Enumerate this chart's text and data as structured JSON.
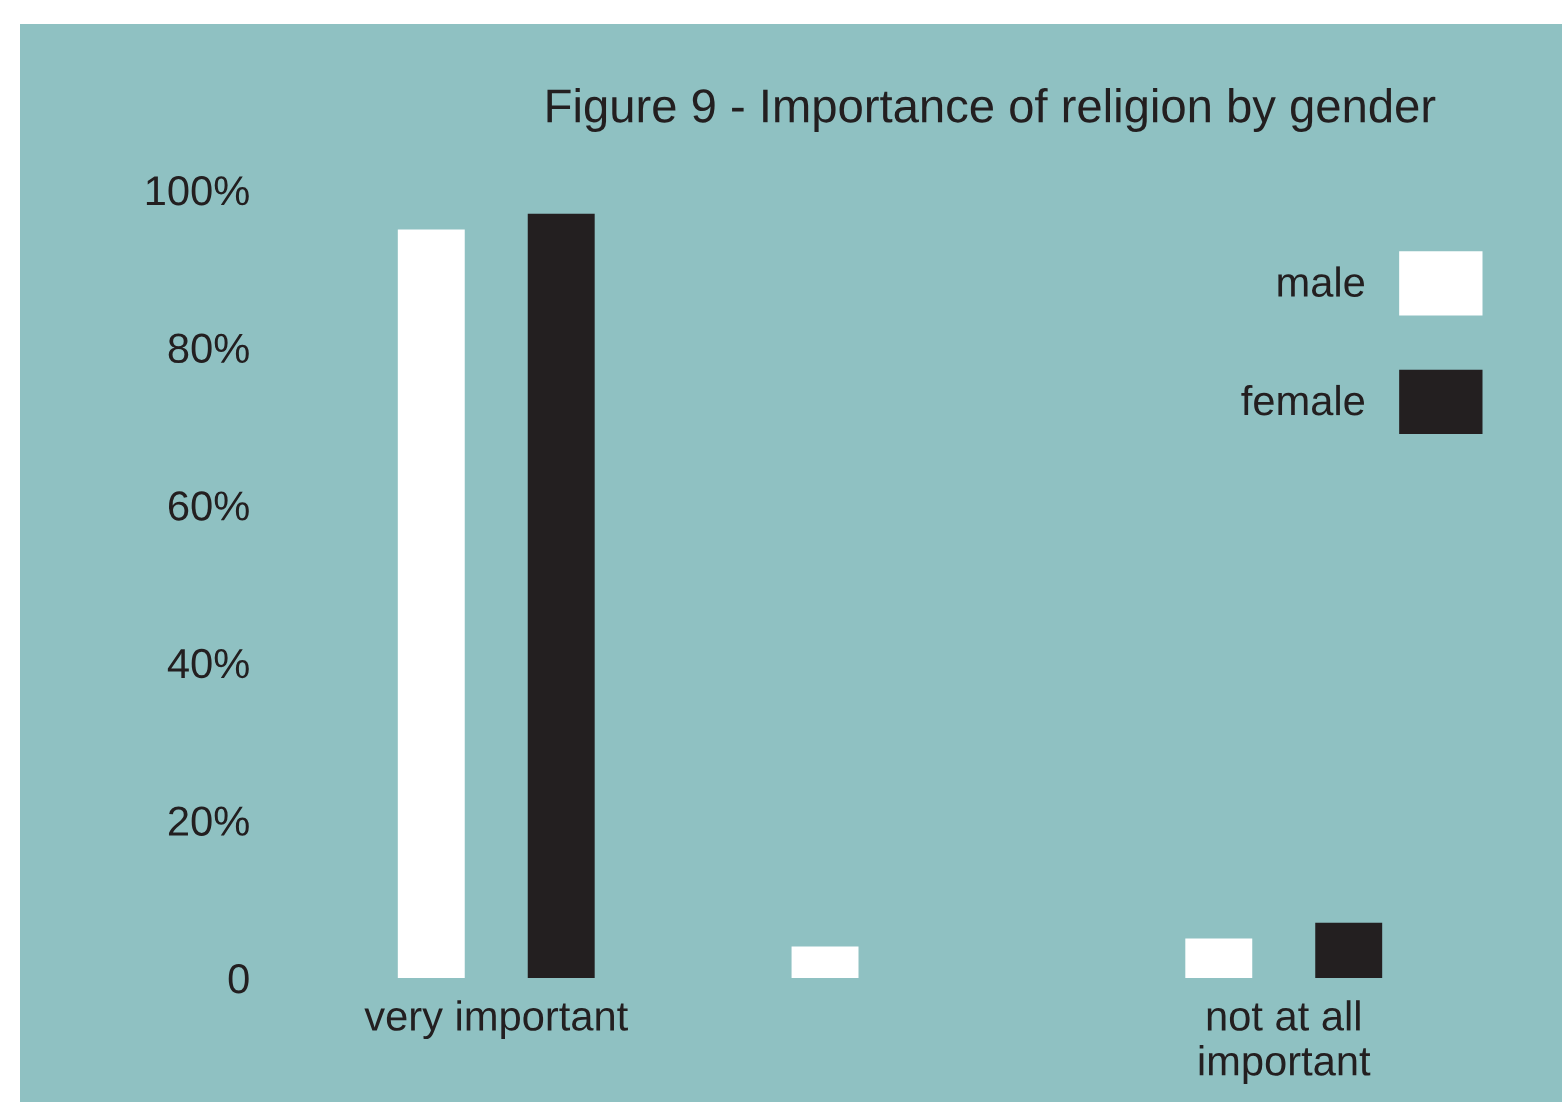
{
  "chart_data": {
    "type": "bar",
    "title": "Figure 9 - Importance of religion by gender",
    "categories": [
      "very important",
      null,
      "not at all important"
    ],
    "series": [
      {
        "name": "male",
        "color": "#ffffff",
        "values": [
          95,
          4,
          5
        ]
      },
      {
        "name": "female",
        "color": "#231f20",
        "values": [
          97,
          null,
          7
        ]
      }
    ],
    "ylim": [
      0,
      100
    ],
    "yticks": [
      0,
      {
        "value": 20,
        "label": "20%"
      },
      {
        "value": 40,
        "label": "40%"
      },
      {
        "value": 60,
        "label": "60%"
      },
      {
        "value": 80,
        "label": "80%"
      },
      {
        "value": 100,
        "label": "100%"
      }
    ],
    "grid": false,
    "legend": "top right"
  }
}
